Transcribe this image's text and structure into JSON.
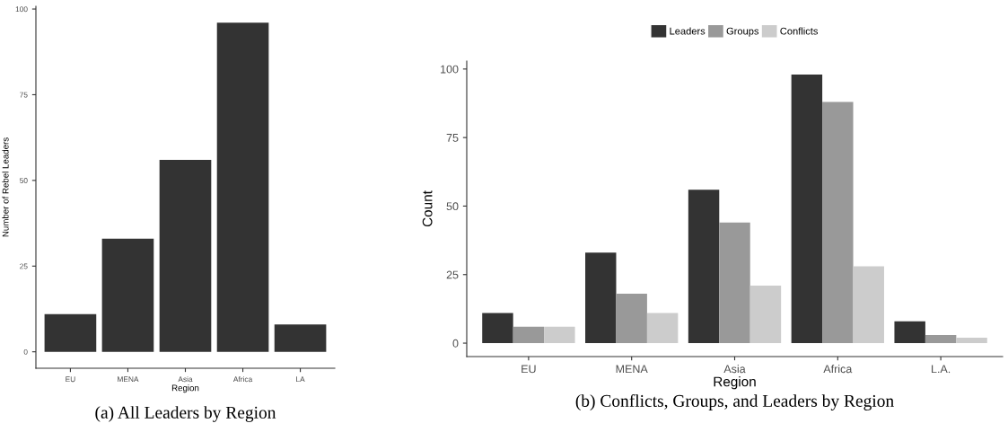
{
  "chart_data": [
    {
      "type": "bar",
      "title": "(a) All Leaders by Region",
      "xlabel": "Region",
      "ylabel": "Number of Rebel Leaders",
      "categories": [
        "EU",
        "MENA",
        "Asia",
        "Africa",
        "LA"
      ],
      "series": [
        {
          "color": "#333333",
          "values": [
            11,
            33,
            56,
            96,
            8
          ]
        }
      ],
      "ylim": [
        -4.8,
        100.8
      ],
      "yticks": [
        0,
        25,
        50,
        75,
        100
      ],
      "grid": false,
      "legend": false
    },
    {
      "type": "bar",
      "title": "(b) Conflicts, Groups, and Leaders by Region",
      "xlabel": "Region",
      "ylabel": "Count",
      "categories": [
        "EU",
        "MENA",
        "Asia",
        "Africa",
        "L.A."
      ],
      "series": [
        {
          "name": "Leaders",
          "color": "#333333",
          "values": [
            11,
            33,
            56,
            98,
            8
          ]
        },
        {
          "name": "Groups",
          "color": "#999999",
          "values": [
            6,
            18,
            44,
            88,
            3
          ]
        },
        {
          "name": "Conflicts",
          "color": "#cccccc",
          "values": [
            6,
            11,
            21,
            28,
            2
          ]
        }
      ],
      "ylim": [
        -4.9,
        102.9
      ],
      "yticks": [
        0,
        25,
        50,
        75,
        100
      ],
      "grid": false,
      "legend": "top"
    }
  ]
}
